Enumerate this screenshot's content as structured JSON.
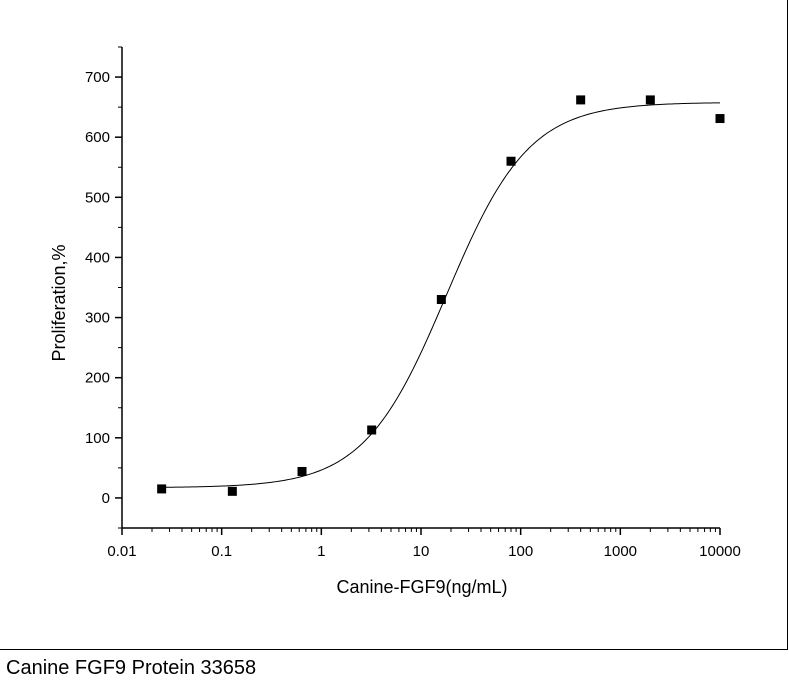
{
  "chart_data": {
    "type": "scatter",
    "x_scale": "log",
    "xlabel": "Canine-FGF9(ng/mL)",
    "ylabel": "Proliferation,%",
    "xlim": [
      0.01,
      10000
    ],
    "ylim": [
      -50,
      750
    ],
    "x_ticks": [
      {
        "value": 0.01,
        "label": "0.01"
      },
      {
        "value": 0.1,
        "label": "0.1"
      },
      {
        "value": 1,
        "label": "1"
      },
      {
        "value": 10,
        "label": "10"
      },
      {
        "value": 100,
        "label": "100"
      },
      {
        "value": 1000,
        "label": "1000"
      },
      {
        "value": 10000,
        "label": "10000"
      }
    ],
    "y_ticks": [
      {
        "value": 0,
        "label": "0"
      },
      {
        "value": 100,
        "label": "100"
      },
      {
        "value": 200,
        "label": "200"
      },
      {
        "value": 300,
        "label": "300"
      },
      {
        "value": 400,
        "label": "400"
      },
      {
        "value": 500,
        "label": "500"
      },
      {
        "value": 600,
        "label": "600"
      },
      {
        "value": 700,
        "label": "700"
      }
    ],
    "grid": false,
    "points": [
      {
        "x": 0.025,
        "y": 15
      },
      {
        "x": 0.128,
        "y": 11
      },
      {
        "x": 0.64,
        "y": 44
      },
      {
        "x": 3.2,
        "y": 113
      },
      {
        "x": 16,
        "y": 330
      },
      {
        "x": 80,
        "y": 560
      },
      {
        "x": 400,
        "y": 662
      },
      {
        "x": 2000,
        "y": 662
      },
      {
        "x": 10000,
        "y": 631
      }
    ],
    "fit_curve": {
      "model": "four-parameter logistic",
      "bottom": 17,
      "top": 658,
      "ec50": 18,
      "hill_slope": 1.05
    },
    "colors": {
      "points": "#000000",
      "curve": "#000000"
    }
  },
  "caption": "Canine FGF9 Protein 33658"
}
